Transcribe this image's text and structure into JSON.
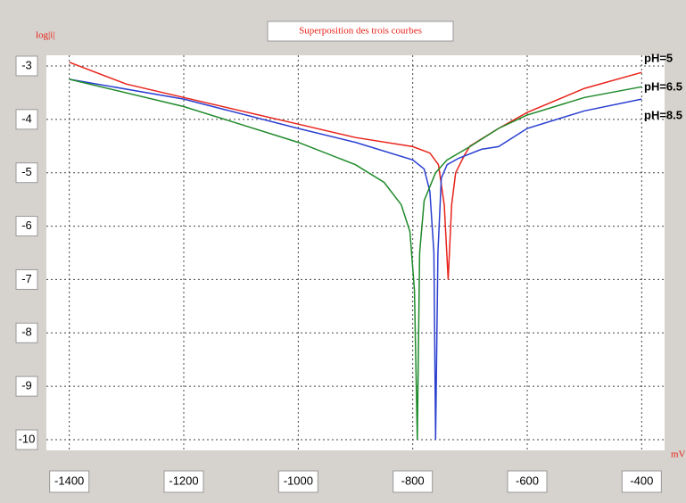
{
  "chart_data": {
    "type": "line",
    "title": "Superposition des trois courbes",
    "y_label": "log|i|",
    "x_label": "mV",
    "xlim": [
      -1440,
      -360
    ],
    "ylim": [
      -10.2,
      -2.8
    ],
    "xticks": [
      -1400,
      -1200,
      -1000,
      -800,
      -600,
      -400
    ],
    "yticks": [
      -3,
      -4,
      -5,
      -6,
      -7,
      -8,
      -9,
      -10
    ],
    "grid": true,
    "series": [
      {
        "name": "pH=5",
        "color": "#e8231a",
        "x": [
          -1400,
          -1300,
          -1200,
          -1100,
          -1000,
          -900,
          -800,
          -770,
          -755,
          -745,
          -738,
          -732,
          -725,
          -710,
          -700,
          -650,
          -600,
          -500,
          -400
        ],
        "values": [
          -2.93,
          -3.34,
          -3.59,
          -3.84,
          -4.09,
          -4.34,
          -4.51,
          -4.63,
          -4.85,
          -5.6,
          -7.0,
          -5.6,
          -5.0,
          -4.68,
          -4.5,
          -4.17,
          -3.87,
          -3.42,
          -3.12
        ]
      },
      {
        "name": "pH=6.5",
        "color": "#2a3fd0",
        "x": [
          -1400,
          -1200,
          -1000,
          -900,
          -800,
          -780,
          -770,
          -763,
          -760,
          -756,
          -750,
          -740,
          -720,
          -680,
          -650,
          -600,
          -500,
          -400
        ],
        "values": [
          -3.25,
          -3.62,
          -4.17,
          -4.43,
          -4.76,
          -4.93,
          -5.35,
          -6.5,
          -10,
          -6.5,
          -5.1,
          -4.85,
          -4.73,
          -4.56,
          -4.51,
          -4.17,
          -3.84,
          -3.62
        ]
      },
      {
        "name": "pH=8.5",
        "color": "#1f8a2a",
        "x": [
          -1400,
          -1200,
          -1000,
          -900,
          -850,
          -820,
          -805,
          -797,
          -792,
          -788,
          -780,
          -760,
          -740,
          -700,
          -650,
          -600,
          -500,
          -400
        ],
        "values": [
          -3.25,
          -3.76,
          -4.43,
          -4.85,
          -5.18,
          -5.6,
          -6.1,
          -7.2,
          -10,
          -6.5,
          -5.52,
          -5.0,
          -4.76,
          -4.51,
          -4.17,
          -3.92,
          -3.59,
          -3.39
        ]
      }
    ]
  }
}
